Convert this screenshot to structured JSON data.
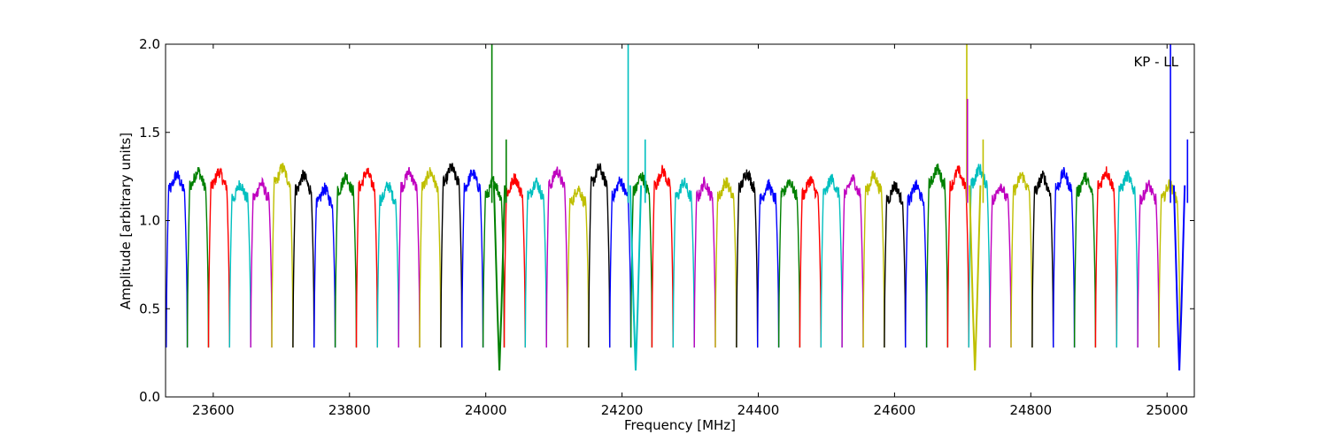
{
  "chart_data": {
    "type": "line",
    "xlabel": "Frequency [MHz]",
    "ylabel": "Amplitude [arbitrary units]",
    "annotation": "KP - LL",
    "xlim": [
      23530,
      25040
    ],
    "ylim": [
      0.0,
      2.0
    ],
    "xticks": [
      23600,
      23800,
      24000,
      24200,
      24400,
      24600,
      24800,
      25000
    ],
    "yticks": [
      0.0,
      0.5,
      1.0,
      1.5,
      2.0
    ],
    "ytick_labels": [
      "0.0",
      "0.5",
      "1.0",
      "1.5",
      "2.0"
    ],
    "grid": false,
    "channel_width_mhz": 31,
    "channel_count": 48,
    "first_channel_start_mhz": 23531,
    "color_cycle": [
      "#0000ff",
      "#008000",
      "#ff0000",
      "#00bfbf",
      "#bf00bf",
      "#bfbf00",
      "#000000"
    ],
    "passband_level": 1.2,
    "edge_min": 0.28,
    "spikes": [
      {
        "x": 24009,
        "y": 2.0,
        "color": "#008000"
      },
      {
        "x": 24030,
        "y": 1.46,
        "color": "#008000"
      },
      {
        "x": 24209,
        "y": 2.0,
        "color": "#00bfbf"
      },
      {
        "x": 24234,
        "y": 1.46,
        "color": "#00bfbf"
      },
      {
        "x": 24706,
        "y": 2.0,
        "color": "#bfbf00"
      },
      {
        "x": 24707,
        "y": 1.69,
        "color": "#bf00bf"
      },
      {
        "x": 24730,
        "y": 1.46,
        "color": "#bfbf00"
      },
      {
        "x": 25005,
        "y": 2.0,
        "color": "#0000ff"
      },
      {
        "x": 25030,
        "y": 1.46,
        "color": "#0000ff"
      }
    ],
    "deep_dips": [
      {
        "x": 24020,
        "y": 0.15,
        "color": "#008000"
      },
      {
        "x": 24220,
        "y": 0.15,
        "color": "#00bfbf"
      },
      {
        "x": 24718,
        "y": 0.15,
        "color": "#bfbf00"
      },
      {
        "x": 25018,
        "y": 0.15,
        "color": "#0000ff"
      }
    ]
  }
}
